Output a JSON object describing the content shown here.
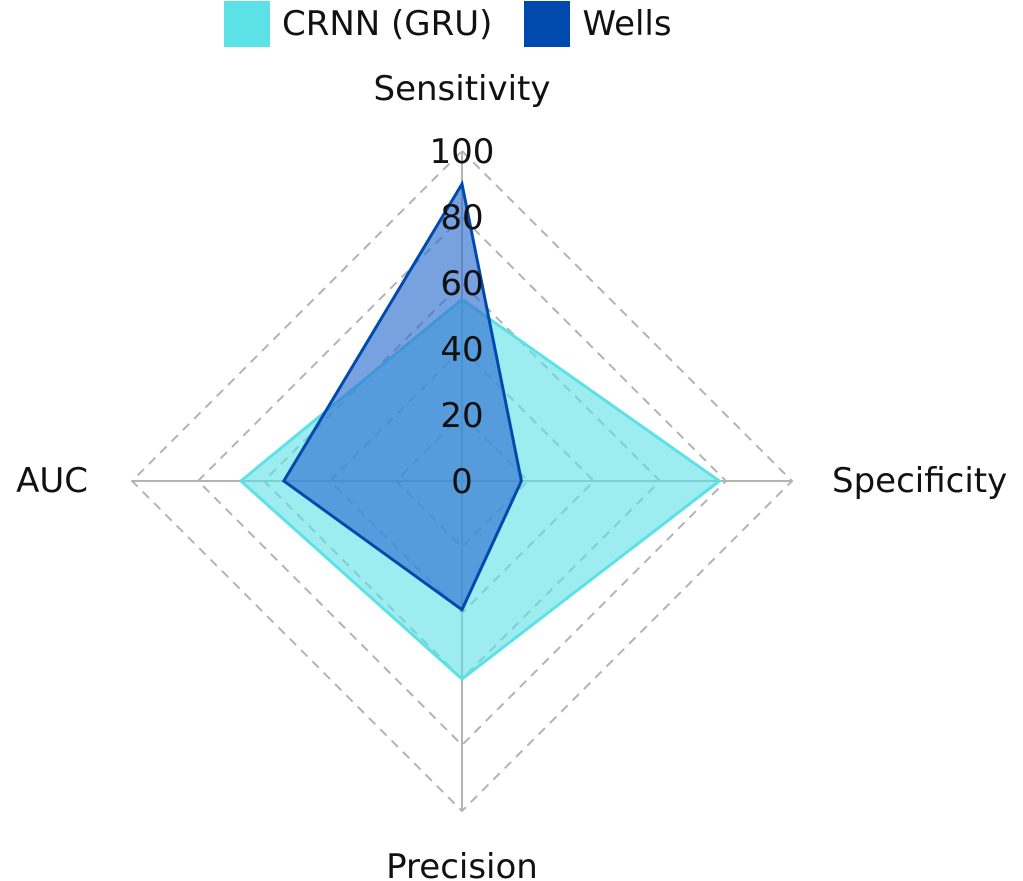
{
  "chart_data": {
    "type": "radar",
    "axes": [
      "Sensitivity",
      "Specificity",
      "Precision",
      "AUC"
    ],
    "rmax": 100,
    "ticks": [
      "0",
      "20",
      "40",
      "60",
      "80",
      "100"
    ],
    "tick_values": [
      0,
      20,
      40,
      60,
      80,
      100
    ],
    "grid": "dashed",
    "legend_position": "top",
    "series": [
      {
        "name": "CRNN (GRU)",
        "values": [
          55,
          78,
          60,
          67
        ],
        "color": "#5ce1e6"
      },
      {
        "name": "Wells",
        "values": [
          90,
          18,
          39,
          54
        ],
        "color": "#004aad"
      }
    ]
  }
}
